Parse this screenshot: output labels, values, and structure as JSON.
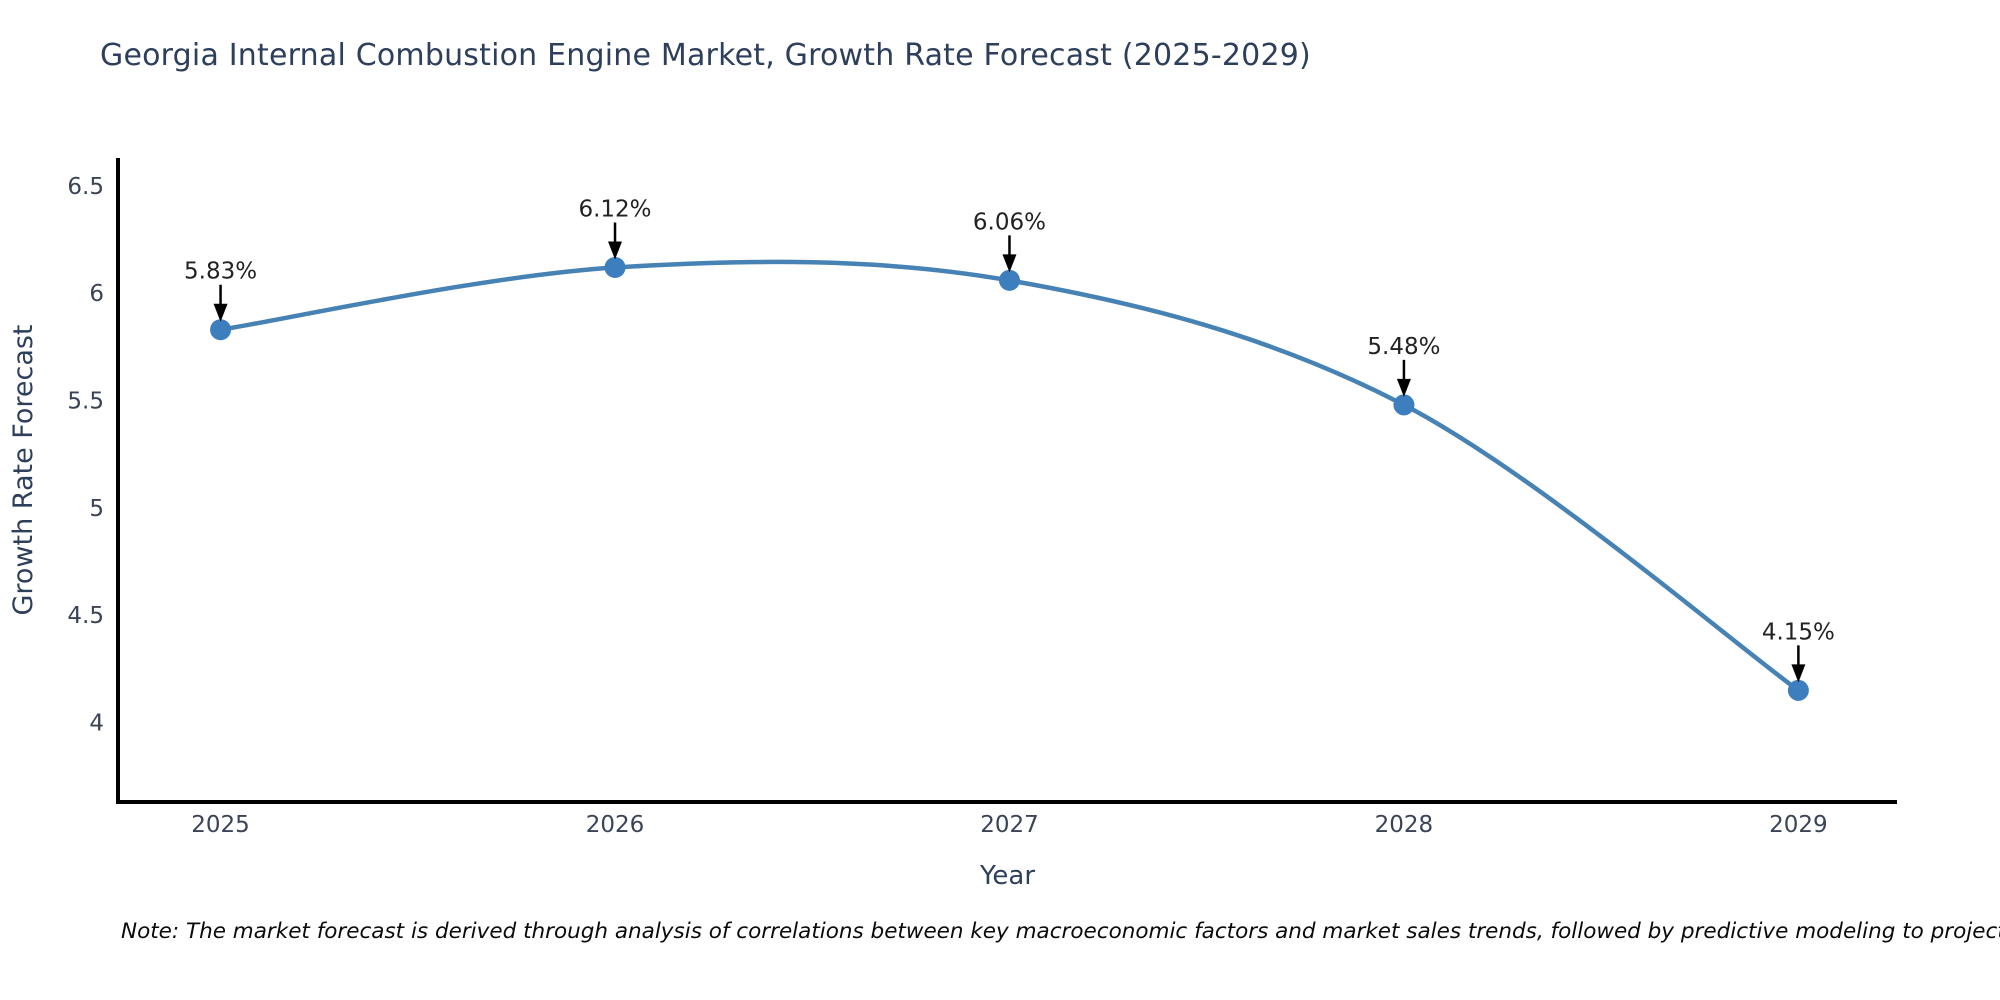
{
  "title": {
    "text": "Georgia Internal Combustion Engine Market, Growth Rate Forecast (2025-2029)",
    "color": "#2e3f5c"
  },
  "note": {
    "text": "Note: The market forecast is derived through analysis of correlations between key macroeconomic factors and market sales trends, followed by predictive modeling to project future sales"
  },
  "chart_data": {
    "type": "line",
    "title": "Georgia Internal Combustion Engine Market, Growth Rate Forecast (2025-2029)",
    "xlabel": "Year",
    "ylabel": "Growth Rate Forecast",
    "x": [
      2025,
      2026,
      2027,
      2028,
      2029
    ],
    "values": [
      5.83,
      6.12,
      6.06,
      5.48,
      4.15
    ],
    "point_labels": [
      "5.83%",
      "6.12%",
      "6.06%",
      "5.48%",
      "4.15%"
    ],
    "xticks": [
      "2025",
      "2026",
      "2027",
      "2028",
      "2029"
    ],
    "yticks": [
      6.5,
      6,
      5.5,
      5,
      4.5,
      4
    ],
    "x_range": [
      2024.74,
      2029.25
    ],
    "y_range": [
      3.63,
      6.63
    ],
    "line_shape": "spline",
    "grid": false,
    "legend": "none",
    "markers": true,
    "annotation_style": "value label above each point with black down-arrow",
    "colors": {
      "line": "#4682b4",
      "marker": "#3d7ebf",
      "axis": "#000000",
      "arrow": "#000000",
      "tick_label": "#3b4456",
      "axis_title": "#2e3f5c",
      "annotation_text": "#222222",
      "background": "#ffffff"
    }
  }
}
